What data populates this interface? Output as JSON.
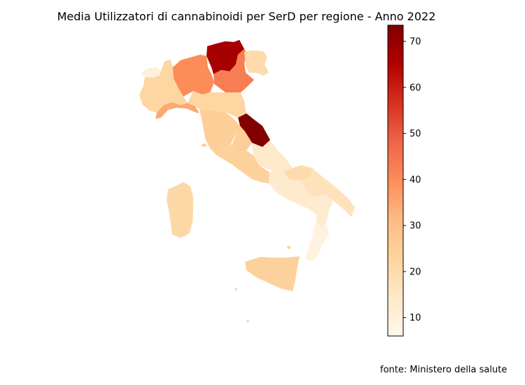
{
  "title": "Media Utilizzatori di cannabinoidi per SerD per regione - Anno 2022",
  "source": "fonte: Ministero della salute",
  "chart_data": {
    "type": "choropleth",
    "title": "Media Utilizzatori di cannabinoidi per SerD per regione - Anno 2022",
    "colormap": "OrRd",
    "colorbar": {
      "vmin": 6,
      "vmax": 73.5,
      "ticks": [
        10,
        20,
        30,
        40,
        50,
        60,
        70
      ]
    },
    "regions": [
      {
        "name": "Valle d'Aosta",
        "value": 10
      },
      {
        "name": "Piemonte",
        "value": 22
      },
      {
        "name": "Liguria",
        "value": 35
      },
      {
        "name": "Lombardia",
        "value": 40
      },
      {
        "name": "Trentino-Alto Adige",
        "value": 67
      },
      {
        "name": "Veneto",
        "value": 43
      },
      {
        "name": "Friuli-Venezia Giulia",
        "value": 20
      },
      {
        "name": "Emilia-Romagna",
        "value": 22
      },
      {
        "name": "Toscana",
        "value": 25
      },
      {
        "name": "Marche",
        "value": 73
      },
      {
        "name": "Umbria",
        "value": 25
      },
      {
        "name": "Lazio",
        "value": 24
      },
      {
        "name": "Abruzzo",
        "value": 14
      },
      {
        "name": "Molise",
        "value": 20
      },
      {
        "name": "Campania",
        "value": 13
      },
      {
        "name": "Puglia",
        "value": 17
      },
      {
        "name": "Basilicata",
        "value": 12
      },
      {
        "name": "Calabria",
        "value": 9
      },
      {
        "name": "Sicilia",
        "value": 24
      },
      {
        "name": "Sardegna",
        "value": 21
      }
    ]
  }
}
